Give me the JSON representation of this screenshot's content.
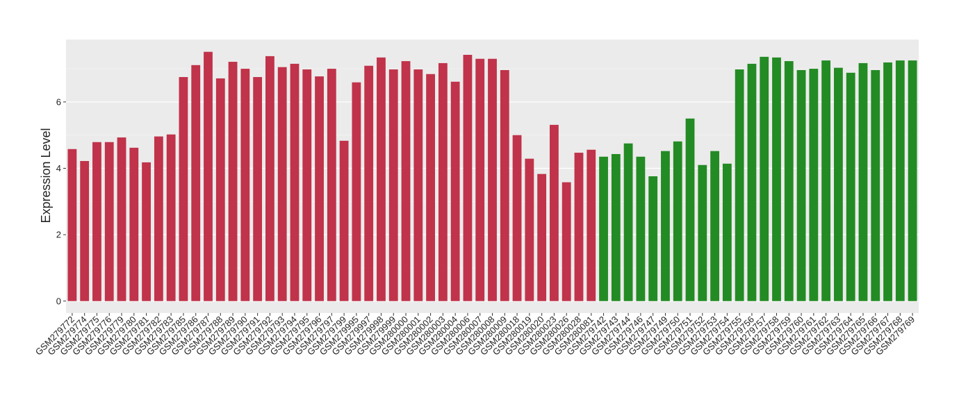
{
  "chart_data": {
    "type": "bar",
    "y_label": "Expression Level",
    "categories": [
      "GSM279772",
      "GSM279774",
      "GSM279775",
      "GSM279776",
      "GSM279779",
      "GSM279780",
      "GSM279781",
      "GSM279782",
      "GSM279783",
      "GSM279785",
      "GSM279786",
      "GSM279787",
      "GSM279788",
      "GSM279789",
      "GSM279790",
      "GSM279791",
      "GSM279792",
      "GSM279793",
      "GSM279794",
      "GSM279795",
      "GSM279796",
      "GSM279797",
      "GSM279799",
      "GSM279995",
      "GSM279997",
      "GSM279998",
      "GSM279999",
      "GSM280000",
      "GSM280001",
      "GSM280002",
      "GSM280003",
      "GSM280004",
      "GSM280006",
      "GSM280007",
      "GSM280008",
      "GSM280009",
      "GSM280018",
      "GSM280019",
      "GSM280020",
      "GSM280023",
      "GSM280026",
      "GSM280028",
      "GSM280081",
      "GSM279742",
      "GSM279743",
      "GSM279744",
      "GSM279746",
      "GSM279747",
      "GSM279749",
      "GSM279750",
      "GSM279751",
      "GSM279752",
      "GSM279753",
      "GSM279754",
      "GSM279755",
      "GSM279756",
      "GSM279757",
      "GSM279758",
      "GSM279759",
      "GSM279760",
      "GSM279761",
      "GSM279762",
      "GSM279763",
      "GSM279764",
      "GSM279765",
      "GSM279766",
      "GSM279767",
      "GSM279768",
      "GSM279769"
    ],
    "values": [
      4.58,
      4.22,
      4.79,
      4.79,
      4.93,
      4.62,
      4.18,
      4.96,
      5.02,
      6.75,
      7.11,
      7.51,
      6.71,
      7.21,
      7.0,
      6.75,
      7.38,
      7.05,
      7.15,
      6.98,
      6.77,
      7.0,
      4.83,
      6.59,
      7.09,
      7.34,
      6.98,
      7.23,
      6.98,
      6.84,
      7.17,
      6.61,
      7.42,
      7.3,
      7.3,
      6.96,
      5.0,
      4.29,
      3.83,
      5.31,
      3.58,
      4.47,
      4.56,
      4.35,
      4.43,
      4.75,
      4.35,
      3.76,
      4.52,
      4.81,
      5.5,
      4.1,
      4.52,
      4.14,
      6.98,
      7.15,
      7.36,
      7.34,
      7.23,
      6.96,
      7.0,
      7.25,
      7.03,
      6.88,
      7.17,
      6.96,
      7.19,
      7.25,
      7.25
    ],
    "colors": [
      "#c0334a",
      "#c0334a",
      "#c0334a",
      "#c0334a",
      "#c0334a",
      "#c0334a",
      "#c0334a",
      "#c0334a",
      "#c0334a",
      "#c0334a",
      "#c0334a",
      "#c0334a",
      "#c0334a",
      "#c0334a",
      "#c0334a",
      "#c0334a",
      "#c0334a",
      "#c0334a",
      "#c0334a",
      "#c0334a",
      "#c0334a",
      "#c0334a",
      "#c0334a",
      "#c0334a",
      "#c0334a",
      "#c0334a",
      "#c0334a",
      "#c0334a",
      "#c0334a",
      "#c0334a",
      "#c0334a",
      "#c0334a",
      "#c0334a",
      "#c0334a",
      "#c0334a",
      "#c0334a",
      "#c0334a",
      "#c0334a",
      "#c0334a",
      "#c0334a",
      "#c0334a",
      "#c0334a",
      "#c0334a",
      "#238b23",
      "#238b23",
      "#238b23",
      "#238b23",
      "#238b23",
      "#238b23",
      "#238b23",
      "#238b23",
      "#238b23",
      "#238b23",
      "#238b23",
      "#238b23",
      "#238b23",
      "#238b23",
      "#238b23",
      "#238b23",
      "#238b23",
      "#238b23",
      "#238b23",
      "#238b23",
      "#238b23",
      "#238b23",
      "#238b23",
      "#238b23",
      "#238b23",
      "#238b23"
    ],
    "ylim": [
      -0.36,
      7.88
    ],
    "yticks": [
      0,
      2,
      4,
      6
    ],
    "y_minor_grid": [
      1,
      3,
      5,
      7
    ],
    "grid": true
  }
}
